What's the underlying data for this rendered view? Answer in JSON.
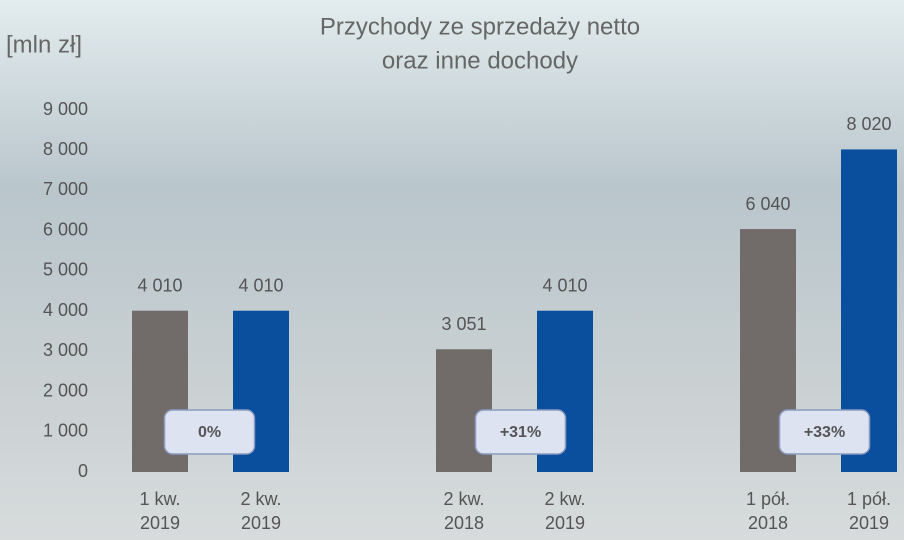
{
  "chart_data": {
    "type": "bar",
    "title": [
      "Przychody ze sprzedaży netto",
      "oraz inne dochody"
    ],
    "y_label": "[mln zł]",
    "categories": [
      [
        "1 kw.",
        "2019"
      ],
      [
        "2 kw.",
        "2019"
      ],
      [
        "2 kw.",
        "2018"
      ],
      [
        "2 kw.",
        "2019"
      ],
      [
        "1 pół.",
        "2018"
      ],
      [
        "1 pół.",
        "2019"
      ]
    ],
    "values": [
      4010,
      4010,
      3051,
      4010,
      6040,
      8020
    ],
    "value_labels": [
      "4 010",
      "4 010",
      "3 051",
      "4 010",
      "6 040",
      "8 020"
    ],
    "colors": [
      "#716c6a",
      "#0a4f9e",
      "#716c6a",
      "#0a4f9e",
      "#716c6a",
      "#0a4f9e"
    ],
    "annotations": [
      "0%",
      "+31%",
      "+33%"
    ],
    "ylim": [
      0,
      9000
    ],
    "yticks": [
      0,
      {
        "value": 1000,
        "label": "1 000"
      },
      {
        "value": 2000,
        "label": "2 000"
      },
      {
        "value": 3000,
        "label": "3 000"
      },
      {
        "value": 4000,
        "label": "4 000"
      },
      {
        "value": 5000,
        "label": "5 000"
      },
      {
        "value": 6000,
        "label": "6 000"
      },
      {
        "value": 7000,
        "label": "7 000"
      },
      {
        "value": 8000,
        "label": "8 000"
      },
      {
        "value": 9000,
        "label": "9 000"
      }
    ]
  }
}
